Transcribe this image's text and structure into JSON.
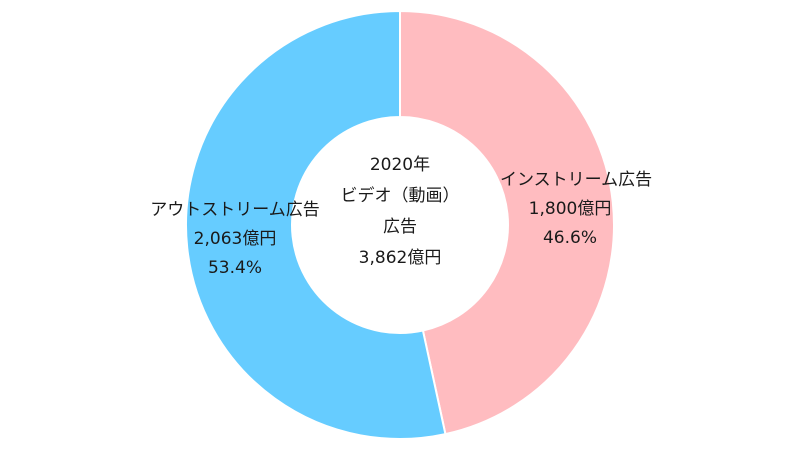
{
  "chart_data": {
    "type": "pie",
    "donut": true,
    "center_text": [
      "2020年",
      "ビデオ（動画）",
      "広告",
      "3,862億円"
    ],
    "categories": [
      "インストリーム広告",
      "アウトストリーム広告"
    ],
    "values": [
      1800,
      2063
    ],
    "value_labels": [
      "1,800億円",
      "2,063億円"
    ],
    "percents": [
      46.6,
      53.4
    ],
    "percent_labels": [
      "46.6%",
      "53.4%"
    ],
    "colors": [
      "#ffbcc0",
      "#66ccff"
    ]
  }
}
